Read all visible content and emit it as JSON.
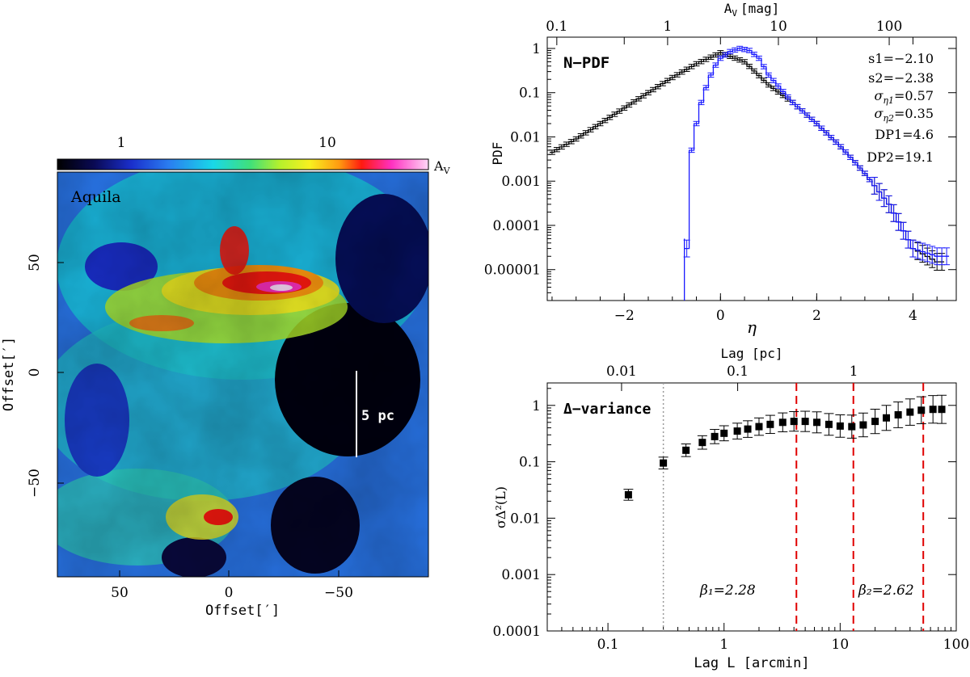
{
  "colors": {
    "black_series": "#000000",
    "blue_series": "#1a1aff",
    "red_dashed": "#e00000",
    "gray_dotted": "#9a9a9a",
    "map_label": "#000000"
  },
  "map": {
    "region_label": "Aquila",
    "colorbar_ticks": [
      "1",
      "10"
    ],
    "colorbar_unit": "A",
    "colorbar_unit_sub": "V",
    "x_ticks": [
      "50",
      "0",
      "−50"
    ],
    "y_ticks": [
      "50",
      "0",
      "−50"
    ],
    "xlabel": "Offset[′]",
    "ylabel": "Offset[′]",
    "scalebar_label": "5 pc"
  },
  "npdf": {
    "panel_label": "N−PDF",
    "top_axis_label": "A",
    "top_axis_sub": "V",
    "top_axis_unit": "[mag]",
    "top_ticks": [
      "0.1",
      "1",
      "10",
      "100"
    ],
    "x_ticks": [
      "−2",
      "0",
      "2",
      "4"
    ],
    "y_ticks": [
      "1",
      "0.1",
      "0.01",
      "0.001",
      "0.0001",
      "0.00001"
    ],
    "xlabel": "η",
    "ylabel": "PDF",
    "stats": [
      {
        "name": "s1",
        "sub": "",
        "value": "=−2.10"
      },
      {
        "name": "s2",
        "sub": "",
        "value": "=−2.38"
      },
      {
        "name": "σ",
        "sub": "η1",
        "value": "=0.57"
      },
      {
        "name": "σ",
        "sub": "η2",
        "value": "=0.35"
      },
      {
        "name": "DP1",
        "sub": "",
        "value": "=4.6"
      },
      {
        "name": "DP2",
        "sub": "",
        "value": "=19.1"
      }
    ]
  },
  "dvar": {
    "panel_label": "Δ−variance",
    "top_axis_label": "Lag [pc]",
    "top_ticks": [
      "0.01",
      "0.1",
      "1"
    ],
    "x_ticks": [
      "0.1",
      "1",
      "10",
      "100"
    ],
    "y_ticks": [
      "1",
      "0.1",
      "0.01",
      "0.001",
      "0.0001"
    ],
    "xlabel": "Lag L [arcmin]",
    "ylabel": "σΔ²(L)",
    "beta1": "β₁=2.28",
    "beta2": "β₂=2.62"
  },
  "chart_data": [
    {
      "type": "line",
      "title": "N-PDF",
      "xlabel": "η",
      "ylabel": "PDF",
      "xlim": [
        -3.6,
        4.9
      ],
      "ylim": [
        2e-06,
        1.8
      ],
      "yscale": "log",
      "series": [
        {
          "name": "black",
          "x": [
            -3.5,
            -3.0,
            -2.5,
            -2.0,
            -1.5,
            -1.0,
            -0.5,
            0.0,
            0.5,
            1.0,
            1.5,
            2.0,
            2.5,
            3.0,
            3.5,
            4.0,
            4.5
          ],
          "values": [
            0.0045,
            0.009,
            0.02,
            0.045,
            0.1,
            0.22,
            0.45,
            0.8,
            0.5,
            0.15,
            0.06,
            0.02,
            0.006,
            0.0015,
            0.0003,
            3e-05,
            1.5e-05
          ]
        },
        {
          "name": "blue",
          "x": [
            -0.75,
            -0.7,
            -0.6,
            -0.5,
            -0.4,
            -0.3,
            -0.2,
            -0.1,
            0.0,
            0.2,
            0.4,
            0.6,
            0.8,
            1.0,
            1.5,
            2.0,
            2.5,
            3.0,
            3.5,
            4.0,
            4.5
          ],
          "values": [
            1e-07,
            3e-05,
            0.005,
            0.02,
            0.06,
            0.13,
            0.25,
            0.42,
            0.6,
            0.85,
            1.0,
            0.9,
            0.6,
            0.25,
            0.06,
            0.02,
            0.006,
            0.0015,
            0.0003,
            3e-05,
            2e-05
          ]
        }
      ]
    },
    {
      "type": "scatter",
      "title": "Δ-variance",
      "xlabel": "Lag L [arcmin]",
      "ylabel": "σΔ²(L)",
      "xlim": [
        0.03,
        100
      ],
      "ylim": [
        0.0001,
        2.5
      ],
      "xscale": "log",
      "yscale": "log",
      "x": [
        0.15,
        0.3,
        0.47,
        0.65,
        0.83,
        1.0,
        1.3,
        1.6,
        2.0,
        2.5,
        3.2,
        4.0,
        5.0,
        6.3,
        8.0,
        10.0,
        12.6,
        15.8,
        20.0,
        25.0,
        31.6,
        40.0,
        50.0,
        63.0,
        75.0
      ],
      "values": [
        0.026,
        0.095,
        0.16,
        0.22,
        0.28,
        0.32,
        0.35,
        0.38,
        0.42,
        0.46,
        0.5,
        0.52,
        0.52,
        0.5,
        0.46,
        0.43,
        0.42,
        0.45,
        0.52,
        0.6,
        0.68,
        0.76,
        0.82,
        0.85,
        0.85
      ],
      "vlines_dashed": [
        4.2,
        13.0,
        52.0
      ],
      "vline_dotted": 0.3,
      "annotations": [
        "β₁=2.28",
        "β₂=2.62"
      ]
    }
  ]
}
